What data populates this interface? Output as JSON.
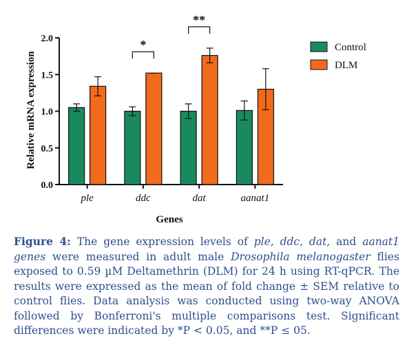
{
  "chart_data": {
    "type": "bar",
    "categories": [
      "ple",
      "ddc",
      "dat",
      "aanat1"
    ],
    "series": [
      {
        "name": "Control",
        "values": [
          1.05,
          1.0,
          1.0,
          1.01
        ],
        "errors": [
          0.05,
          0.06,
          0.1,
          0.13
        ]
      },
      {
        "name": "DLM",
        "values": [
          1.34,
          1.52,
          1.76,
          1.3
        ],
        "errors": [
          0.13,
          0.0,
          0.1,
          0.28
        ]
      }
    ],
    "xlabel": "Genes",
    "ylabel": "Relative mRNA expression",
    "ylim": [
      0,
      2.0
    ],
    "yticks": [
      "0.0",
      "0.5",
      "1.0",
      "1.5",
      "2.0"
    ],
    "significance": [
      {
        "category": "ddc",
        "label": "*"
      },
      {
        "category": "dat",
        "label": "**"
      }
    ],
    "legend_position": "top-right",
    "colors": {
      "Control": "#1a8a5e",
      "DLM": "#f26a1b"
    }
  },
  "caption": {
    "label": "Figure 4:",
    "t1": " The gene expression levels of ",
    "g1": "ple, ddc, dat,",
    "t2": " and ",
    "g2": "aanat1 genes",
    "t3": " were measured in adult male ",
    "species": "Drosophila melanogaster",
    "t4": " flies exposed to 0.59 µM Deltamethrin (DLM) for 24 h using RT-qPCR. The results were expressed as the mean of fold change ± SEM relative to control flies. Data analysis was conducted using two-way ANOVA followed by Bonferroni's multiple comparisons test. Significant differences were indicated by *P < 0.05, and **P ≤ 05."
  }
}
